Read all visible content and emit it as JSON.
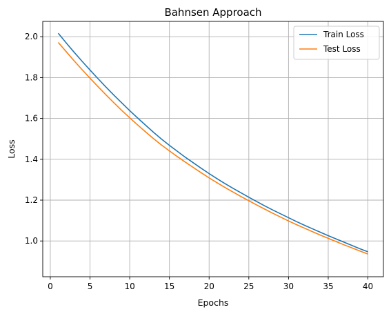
{
  "chart_data": {
    "type": "line",
    "title": "Bahnsen Approach",
    "xlabel": "Epochs",
    "ylabel": "Loss",
    "xlim": [
      -0.95,
      41.95
    ],
    "ylim": [
      0.825,
      2.075
    ],
    "xticks": [
      0,
      5,
      10,
      15,
      20,
      25,
      30,
      35,
      40
    ],
    "yticks": [
      1.0,
      1.2,
      1.4,
      1.6,
      1.8,
      2.0
    ],
    "ytick_labels": [
      "1.0",
      "1.2",
      "1.4",
      "1.6",
      "1.8",
      "2.0"
    ],
    "grid": true,
    "legend_position": "top-right",
    "x": [
      1,
      2,
      3,
      4,
      5,
      6,
      7,
      8,
      9,
      10,
      11,
      12,
      13,
      14,
      15,
      16,
      17,
      18,
      19,
      20,
      21,
      22,
      23,
      24,
      25,
      26,
      27,
      28,
      29,
      30,
      31,
      32,
      33,
      34,
      35,
      36,
      37,
      38,
      39,
      40
    ],
    "series": [
      {
        "name": "Train Loss",
        "color": "#1f77b4",
        "values": [
          2.017,
          1.97,
          1.924,
          1.88,
          1.837,
          1.795,
          1.754,
          1.714,
          1.676,
          1.638,
          1.602,
          1.567,
          1.532,
          1.499,
          1.468,
          1.439,
          1.41,
          1.383,
          1.356,
          1.33,
          1.305,
          1.281,
          1.258,
          1.236,
          1.214,
          1.193,
          1.172,
          1.152,
          1.133,
          1.114,
          1.095,
          1.077,
          1.06,
          1.043,
          1.026,
          1.01,
          0.994,
          0.978,
          0.962,
          0.947
        ]
      },
      {
        "name": "Test Loss",
        "color": "#ff7f0e",
        "values": [
          1.972,
          1.927,
          1.882,
          1.839,
          1.797,
          1.756,
          1.716,
          1.677,
          1.639,
          1.603,
          1.568,
          1.534,
          1.501,
          1.47,
          1.441,
          1.413,
          1.386,
          1.36,
          1.334,
          1.309,
          1.285,
          1.262,
          1.24,
          1.218,
          1.197,
          1.176,
          1.156,
          1.136,
          1.117,
          1.098,
          1.08,
          1.063,
          1.046,
          1.029,
          1.013,
          0.997,
          0.981,
          0.966,
          0.951,
          0.936
        ]
      }
    ]
  }
}
